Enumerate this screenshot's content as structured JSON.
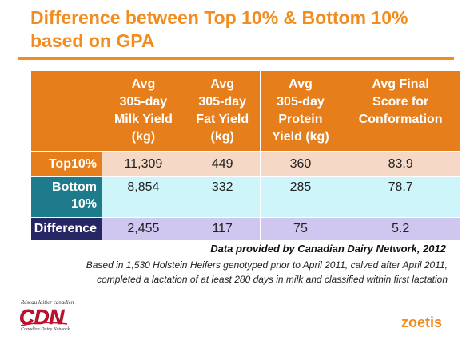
{
  "slide": {
    "title_line1": "Difference between Top 10% & Bottom 10%",
    "title_line2": "based on GPA",
    "source": "Data provided by Canadian Dairy Network, 2012",
    "note_line1": "Based in 1,530 Holstein Heifers genotyped prior to April 2011, calved after April 2011,",
    "note_line2": "completed a lactation of at least 280 days in milk and classified within first lactation"
  },
  "table": {
    "columns": [
      {
        "lines": [
          "Avg",
          "305-day",
          "Milk Yield",
          "(kg)"
        ]
      },
      {
        "lines": [
          "Avg",
          "305-day",
          "Fat Yield",
          "(kg)"
        ]
      },
      {
        "lines": [
          "Avg",
          "305-day",
          "Protein",
          "Yield (kg)"
        ]
      },
      {
        "lines": [
          "Avg Final",
          "Score for",
          "Conformation",
          ""
        ]
      }
    ],
    "rows": [
      {
        "label_lines": [
          "Top10%"
        ],
        "values": [
          "11,309",
          "449",
          "360",
          "83.9"
        ]
      },
      {
        "label_lines": [
          "Bottom",
          "10%"
        ],
        "values": [
          "8,854",
          "332",
          "285",
          "78.7"
        ]
      },
      {
        "label_lines": [
          "Difference"
        ],
        "values": [
          "2,455",
          "117",
          "75",
          "5.2"
        ]
      }
    ]
  },
  "logos": {
    "cdn_tagline": "Réseau laitier canadien",
    "cdn_letters": "CDN",
    "cdn_name": "Canadian Dairy Network",
    "zoetis": "zoetis"
  },
  "colors": {
    "title": "#f28c1e",
    "header": "#e57e1b",
    "top_row": "#f5d8c6",
    "bottom_label": "#1d7b8c",
    "bottom_row": "#cdf5fa",
    "diff_label": "#262664",
    "diff_row": "#cfc7ef",
    "zoetis": "#f28c1e"
  }
}
